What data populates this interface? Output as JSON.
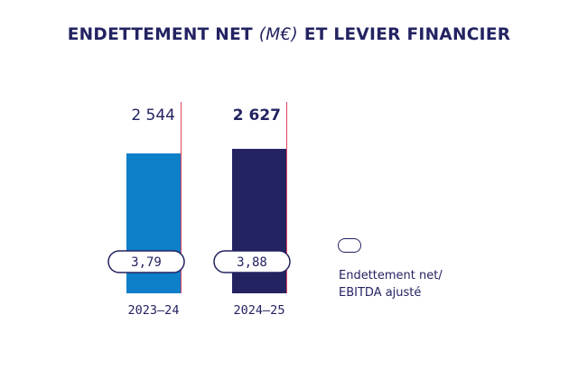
{
  "title": {
    "main": "ENDETTEMENT NET",
    "unit": "(M€)",
    "rest": "ET LEVIER FINANCIER"
  },
  "colors": {
    "navy": "#232362",
    "blue": "#0e7fc9",
    "red_marker": "#e0435b"
  },
  "legend": {
    "line1": "Endettement net/",
    "line2": "EBITDA ajusté"
  },
  "chart_data": {
    "type": "bar",
    "categories": [
      "2023–24",
      "2024–25"
    ],
    "series": [
      {
        "values": [
          2544,
          2627
        ],
        "value_labels": [
          "2 544",
          "2 627"
        ]
      },
      {
        "name": "Endettement net/ EBITDA ajusté",
        "values": [
          3.79,
          3.88
        ],
        "value_labels": [
          "3,79",
          "3,88"
        ]
      }
    ],
    "bar_colors": [
      "#0e7fc9",
      "#232362"
    ],
    "bold_label_index": 1
  }
}
